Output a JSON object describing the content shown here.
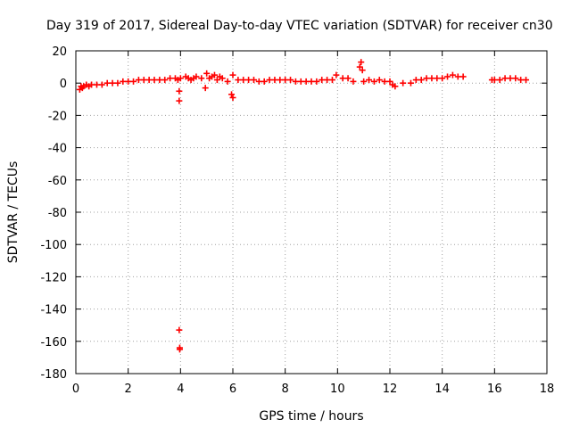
{
  "chart_data": {
    "type": "scatter",
    "title": "Day 319 of 2017, Sidereal Day-to-day VTEC variation (SDTVAR) for receiver cn30",
    "xlabel": "GPS time / hours",
    "ylabel": "SDTVAR / TECUs",
    "xlim": [
      0,
      18
    ],
    "ylim": [
      -180,
      20
    ],
    "xticks": [
      0,
      2,
      4,
      6,
      8,
      10,
      12,
      14,
      16,
      18
    ],
    "yticks": [
      20,
      0,
      -20,
      -40,
      -60,
      -80,
      -100,
      -120,
      -140,
      -160,
      -180
    ],
    "grid": true,
    "marker": "plus",
    "color": "#ff0000",
    "series": [
      {
        "name": "SDTVAR",
        "x": [
          0.15,
          0.2,
          0.25,
          0.3,
          0.4,
          0.5,
          0.6,
          0.8,
          1.0,
          1.2,
          1.4,
          1.6,
          1.8,
          2.0,
          2.2,
          2.4,
          2.6,
          2.8,
          3.0,
          3.2,
          3.4,
          3.6,
          3.8,
          3.9,
          3.95,
          3.95,
          3.95,
          3.97,
          3.97,
          4.0,
          4.2,
          4.3,
          4.4,
          4.5,
          4.6,
          4.8,
          4.95,
          5.0,
          5.1,
          5.2,
          5.3,
          5.4,
          5.5,
          5.6,
          5.8,
          5.95,
          6.0,
          6.0,
          6.2,
          6.4,
          6.6,
          6.8,
          7.0,
          7.2,
          7.4,
          7.6,
          7.8,
          8.0,
          8.2,
          8.4,
          8.6,
          8.8,
          9.0,
          9.2,
          9.4,
          9.6,
          9.8,
          9.95,
          10.2,
          10.4,
          10.6,
          10.85,
          10.9,
          10.95,
          11.0,
          11.2,
          11.4,
          11.6,
          11.8,
          12.0,
          12.1,
          12.2,
          12.5,
          12.8,
          13.0,
          13.2,
          13.4,
          13.6,
          13.8,
          14.0,
          14.2,
          14.4,
          14.6,
          14.8,
          15.9,
          16.0,
          16.2,
          16.4,
          16.6,
          16.8,
          17.0,
          17.2
        ],
        "y": [
          -4,
          -2,
          -3,
          -2,
          -1,
          -2,
          -1,
          -1,
          -1,
          0,
          0,
          0,
          1,
          1,
          1,
          2,
          2,
          2,
          2,
          2,
          2,
          3,
          3,
          2,
          -5,
          -11,
          -153,
          -165,
          -164,
          3,
          4,
          3,
          2,
          3,
          4,
          3,
          -3,
          6,
          3,
          4,
          5,
          2,
          4,
          3,
          1,
          -7,
          -9,
          5,
          2,
          2,
          2,
          2,
          1,
          1,
          2,
          2,
          2,
          2,
          2,
          1,
          1,
          1,
          1,
          1,
          2,
          2,
          2,
          5,
          3,
          3,
          1,
          10,
          13,
          8,
          1,
          2,
          1,
          2,
          1,
          1,
          -1,
          -2,
          0,
          0,
          2,
          2,
          3,
          3,
          3,
          3,
          4,
          5,
          4,
          4,
          2,
          2,
          2,
          3,
          3,
          3,
          2,
          2
        ]
      }
    ]
  }
}
